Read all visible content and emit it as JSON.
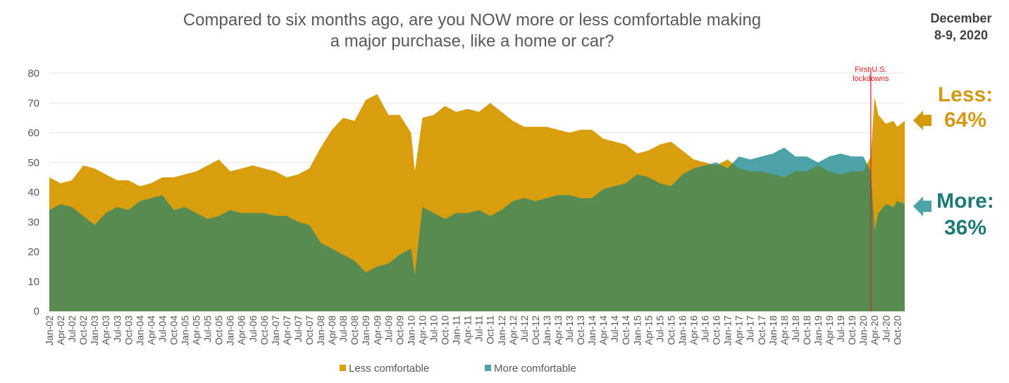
{
  "title_lines": [
    "Compared to six months ago, are you NOW more or less comfortable making",
    "a major purchase, like a home or car?"
  ],
  "date_lines": [
    "December",
    "8-9, 2020"
  ],
  "colors": {
    "less": "#D99E0D",
    "more": "#4BA3A8",
    "overlap": "#588B50",
    "less_callout": "#D39A10",
    "more_callout": "#1E7A78",
    "annotation_line": "#D0202A"
  },
  "callouts": {
    "less_label": "Less:",
    "less_value": "64%",
    "more_label": "More:",
    "more_value": "36%"
  },
  "chart_data": {
    "type": "area",
    "ylim": [
      0,
      80
    ],
    "yticks": [
      0,
      10,
      20,
      30,
      40,
      50,
      60,
      70,
      80
    ],
    "x_start": "Jan-02",
    "x_end": "Dec-20",
    "xtick_labels": [
      "Jan-02",
      "Apr-02",
      "Jul-02",
      "Oct-02",
      "Jan-03",
      "Apr-03",
      "Jul-03",
      "Oct-03",
      "Jan-04",
      "Apr-04",
      "Jul-04",
      "Oct-04",
      "Jan-05",
      "Apr-05",
      "Jul-05",
      "Oct-05",
      "Jan-06",
      "Apr-06",
      "Jul-06",
      "Oct-06",
      "Jan-07",
      "Apr-07",
      "Jul-07",
      "Oct-07",
      "Jan-08",
      "Apr-08",
      "Jul-08",
      "Oct-08",
      "Jan-09",
      "Apr-09",
      "Jul-09",
      "Oct-09",
      "Jan-10",
      "Apr-10",
      "Jul-10",
      "Oct-10",
      "Jan-11",
      "Apr-11",
      "Jul-11",
      "Oct-11",
      "Jan-12",
      "Apr-12",
      "Jul-12",
      "Oct-12",
      "Jan-13",
      "Apr-13",
      "Jul-13",
      "Oct-13",
      "Jan-14",
      "Apr-14",
      "Jul-14",
      "Oct-14",
      "Jan-15",
      "Apr-15",
      "Jul-15",
      "Oct-15",
      "Jan-16",
      "Apr-16",
      "Jul-16",
      "Oct-16",
      "Jan-17",
      "Apr-17",
      "Jul-17",
      "Oct-17",
      "Jan-18",
      "Apr-18",
      "Jul-18",
      "Oct-18",
      "Jan-19",
      "Apr-19",
      "Jul-19",
      "Oct-19",
      "Jan-20",
      "Apr-20",
      "Jul-20",
      "Oct-20"
    ],
    "grid": true,
    "legend_position": "bottom-center",
    "series": [
      {
        "name": "Less comfortable",
        "points": [
          [
            "Jan-02",
            45
          ],
          [
            "Apr-02",
            43
          ],
          [
            "Jul-02",
            44
          ],
          [
            "Oct-02",
            49
          ],
          [
            "Jan-03",
            48
          ],
          [
            "Apr-03",
            46
          ],
          [
            "Jul-03",
            44
          ],
          [
            "Oct-03",
            44
          ],
          [
            "Jan-04",
            42
          ],
          [
            "Apr-04",
            43
          ],
          [
            "Jul-04",
            45
          ],
          [
            "Oct-04",
            45
          ],
          [
            "Jan-05",
            46
          ],
          [
            "Apr-05",
            47
          ],
          [
            "Jul-05",
            49
          ],
          [
            "Oct-05",
            51
          ],
          [
            "Jan-06",
            47
          ],
          [
            "Apr-06",
            48
          ],
          [
            "Jul-06",
            49
          ],
          [
            "Oct-06",
            48
          ],
          [
            "Jan-07",
            47
          ],
          [
            "Apr-07",
            45
          ],
          [
            "Jul-07",
            46
          ],
          [
            "Oct-07",
            48
          ],
          [
            "Jan-08",
            55
          ],
          [
            "Apr-08",
            61
          ],
          [
            "Jul-08",
            65
          ],
          [
            "Oct-08",
            64
          ],
          [
            "Jan-09",
            71
          ],
          [
            "Apr-09",
            73
          ],
          [
            "Jul-09",
            66
          ],
          [
            "Oct-09",
            66
          ],
          [
            "Jan-10",
            60
          ],
          [
            "Feb-10",
            47
          ],
          [
            "Apr-10",
            65
          ],
          [
            "Jul-10",
            66
          ],
          [
            "Oct-10",
            69
          ],
          [
            "Jan-11",
            67
          ],
          [
            "Apr-11",
            68
          ],
          [
            "Jul-11",
            67
          ],
          [
            "Oct-11",
            70
          ],
          [
            "Jan-12",
            67
          ],
          [
            "Apr-12",
            64
          ],
          [
            "Jul-12",
            62
          ],
          [
            "Oct-12",
            62
          ],
          [
            "Jan-13",
            62
          ],
          [
            "Apr-13",
            61
          ],
          [
            "Jul-13",
            60
          ],
          [
            "Oct-13",
            61
          ],
          [
            "Jan-14",
            61
          ],
          [
            "Apr-14",
            58
          ],
          [
            "Jul-14",
            57
          ],
          [
            "Oct-14",
            56
          ],
          [
            "Jan-15",
            53
          ],
          [
            "Apr-15",
            54
          ],
          [
            "Jul-15",
            56
          ],
          [
            "Oct-15",
            57
          ],
          [
            "Jan-16",
            54
          ],
          [
            "Apr-16",
            51
          ],
          [
            "Jul-16",
            50
          ],
          [
            "Oct-16",
            49
          ],
          [
            "Jan-17",
            51
          ],
          [
            "Apr-17",
            48
          ],
          [
            "Jul-17",
            47
          ],
          [
            "Oct-17",
            47
          ],
          [
            "Jan-18",
            46
          ],
          [
            "Apr-18",
            45
          ],
          [
            "Jul-18",
            47
          ],
          [
            "Oct-18",
            47
          ],
          [
            "Jan-19",
            49
          ],
          [
            "Apr-19",
            47
          ],
          [
            "Jul-19",
            46
          ],
          [
            "Oct-19",
            47
          ],
          [
            "Jan-20",
            47
          ],
          [
            "Mar-20",
            52
          ],
          [
            "Apr-20",
            72
          ],
          [
            "May-20",
            66
          ],
          [
            "Jul-20",
            63
          ],
          [
            "Sep-20",
            64
          ],
          [
            "Oct-20",
            62
          ],
          [
            "Dec-20",
            64
          ]
        ]
      },
      {
        "name": "More comfortable",
        "points": [
          [
            "Jan-02",
            34
          ],
          [
            "Apr-02",
            36
          ],
          [
            "Jul-02",
            35
          ],
          [
            "Oct-02",
            32
          ],
          [
            "Jan-03",
            29
          ],
          [
            "Apr-03",
            33
          ],
          [
            "Jul-03",
            35
          ],
          [
            "Oct-03",
            34
          ],
          [
            "Jan-04",
            37
          ],
          [
            "Apr-04",
            38
          ],
          [
            "Jul-04",
            39
          ],
          [
            "Oct-04",
            34
          ],
          [
            "Jan-05",
            35
          ],
          [
            "Apr-05",
            33
          ],
          [
            "Jul-05",
            31
          ],
          [
            "Oct-05",
            32
          ],
          [
            "Jan-06",
            34
          ],
          [
            "Apr-06",
            33
          ],
          [
            "Jul-06",
            33
          ],
          [
            "Oct-06",
            33
          ],
          [
            "Jan-07",
            32
          ],
          [
            "Apr-07",
            32
          ],
          [
            "Jul-07",
            30
          ],
          [
            "Oct-07",
            29
          ],
          [
            "Jan-08",
            23
          ],
          [
            "Apr-08",
            21
          ],
          [
            "Jul-08",
            19
          ],
          [
            "Oct-08",
            17
          ],
          [
            "Jan-09",
            13
          ],
          [
            "Apr-09",
            15
          ],
          [
            "Jul-09",
            16
          ],
          [
            "Oct-09",
            19
          ],
          [
            "Jan-10",
            21
          ],
          [
            "Feb-10",
            12
          ],
          [
            "Apr-10",
            35
          ],
          [
            "Jul-10",
            33
          ],
          [
            "Oct-10",
            31
          ],
          [
            "Jan-11",
            33
          ],
          [
            "Apr-11",
            33
          ],
          [
            "Jul-11",
            34
          ],
          [
            "Oct-11",
            32
          ],
          [
            "Jan-12",
            34
          ],
          [
            "Apr-12",
            37
          ],
          [
            "Jul-12",
            38
          ],
          [
            "Oct-12",
            37
          ],
          [
            "Jan-13",
            38
          ],
          [
            "Apr-13",
            39
          ],
          [
            "Jul-13",
            39
          ],
          [
            "Oct-13",
            38
          ],
          [
            "Jan-14",
            38
          ],
          [
            "Apr-14",
            41
          ],
          [
            "Jul-14",
            42
          ],
          [
            "Oct-14",
            43
          ],
          [
            "Jan-15",
            46
          ],
          [
            "Apr-15",
            45
          ],
          [
            "Jul-15",
            43
          ],
          [
            "Oct-15",
            42
          ],
          [
            "Jan-16",
            46
          ],
          [
            "Apr-16",
            48
          ],
          [
            "Jul-16",
            49
          ],
          [
            "Oct-16",
            50
          ],
          [
            "Jan-17",
            48
          ],
          [
            "Apr-17",
            52
          ],
          [
            "Jul-17",
            51
          ],
          [
            "Oct-17",
            52
          ],
          [
            "Jan-18",
            53
          ],
          [
            "Apr-18",
            55
          ],
          [
            "Jul-18",
            52
          ],
          [
            "Oct-18",
            52
          ],
          [
            "Jan-19",
            50
          ],
          [
            "Apr-19",
            52
          ],
          [
            "Jul-19",
            53
          ],
          [
            "Oct-19",
            52
          ],
          [
            "Jan-20",
            52
          ],
          [
            "Mar-20",
            47
          ],
          [
            "Apr-20",
            27
          ],
          [
            "May-20",
            33
          ],
          [
            "Jul-20",
            36
          ],
          [
            "Sep-20",
            35
          ],
          [
            "Oct-20",
            37
          ],
          [
            "Dec-20",
            36
          ]
        ]
      }
    ],
    "annotations": [
      {
        "x": "Mar-20",
        "text_lines": [
          "First U.S.",
          "lockdowns"
        ]
      }
    ]
  }
}
